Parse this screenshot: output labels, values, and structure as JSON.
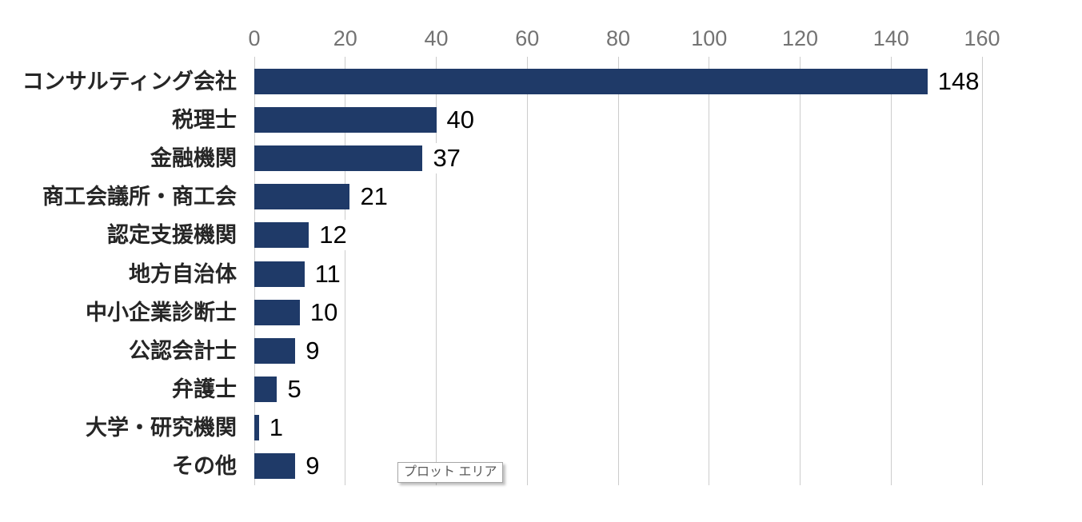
{
  "chart_data": {
    "type": "bar",
    "orientation": "horizontal",
    "title": "",
    "categories": [
      "コンサルティング会社",
      "税理士",
      "金融機関",
      "商工会議所・商工会",
      "認定支援機関",
      "地方自治体",
      "中小企業診断士",
      "公認会計士",
      "弁護士",
      "大学・研究機関",
      "その他"
    ],
    "values": [
      148,
      40,
      37,
      21,
      12,
      11,
      10,
      9,
      5,
      1,
      9
    ],
    "x_axis": {
      "min": 0,
      "max": 160,
      "tick_interval": 20,
      "tick_labels": [
        "0",
        "20",
        "40",
        "60",
        "80",
        "100",
        "120",
        "140",
        "160"
      ],
      "position": "top"
    },
    "data_labels_shown": true,
    "grid": true,
    "legend": "none",
    "colors": {
      "bar": "#1F3A68",
      "gridline": "#CCCCCC",
      "axis_tick_label": "#737373",
      "category_label": "#262626",
      "data_label": "#000000"
    }
  },
  "tooltip": {
    "label": "プロット エリア"
  }
}
